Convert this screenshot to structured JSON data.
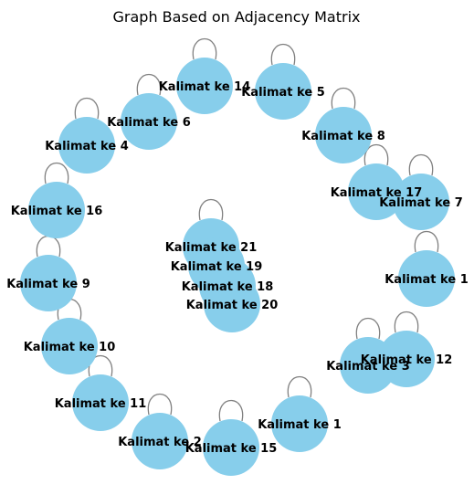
{
  "title": "Graph Based on Adjacency Matrix",
  "colors": {
    "node_fill": "#87ceeb",
    "edge": "#808080",
    "text": "#000000",
    "background": "#ffffff"
  },
  "nodes": [
    {
      "label": "Kalimat ke 14",
      "self_loop": true
    },
    {
      "label": "Kalimat ke 5",
      "self_loop": true
    },
    {
      "label": "Kalimat ke 6",
      "self_loop": true
    },
    {
      "label": "Kalimat ke 8",
      "self_loop": true
    },
    {
      "label": "Kalimat ke 4",
      "self_loop": true
    },
    {
      "label": "Kalimat ke 17",
      "self_loop": true
    },
    {
      "label": "Kalimat ke 7",
      "self_loop": true
    },
    {
      "label": "Kalimat ke 16",
      "self_loop": true
    },
    {
      "label": "Kalimat ke 21",
      "self_loop": true
    },
    {
      "label": "Kalimat ke 19",
      "self_loop": false
    },
    {
      "label": "Kalimat ke 18",
      "self_loop": false
    },
    {
      "label": "Kalimat ke 20",
      "self_loop": false
    },
    {
      "label": "Kalimat ke 1",
      "self_loop": true
    },
    {
      "label": "Kalimat ke 9",
      "self_loop": true
    },
    {
      "label": "Kalimat ke 10",
      "self_loop": true
    },
    {
      "label": "Kalimat ke 12",
      "self_loop": true
    },
    {
      "label": "Kalimat ke 3",
      "self_loop": true
    },
    {
      "label": "Kalimat ke 11",
      "self_loop": true
    },
    {
      "label": "Kalimat ke 1",
      "self_loop": true
    },
    {
      "label": "Kalimat ke 2",
      "self_loop": true
    },
    {
      "label": "Kalimat ke 15",
      "self_loop": true
    }
  ]
}
